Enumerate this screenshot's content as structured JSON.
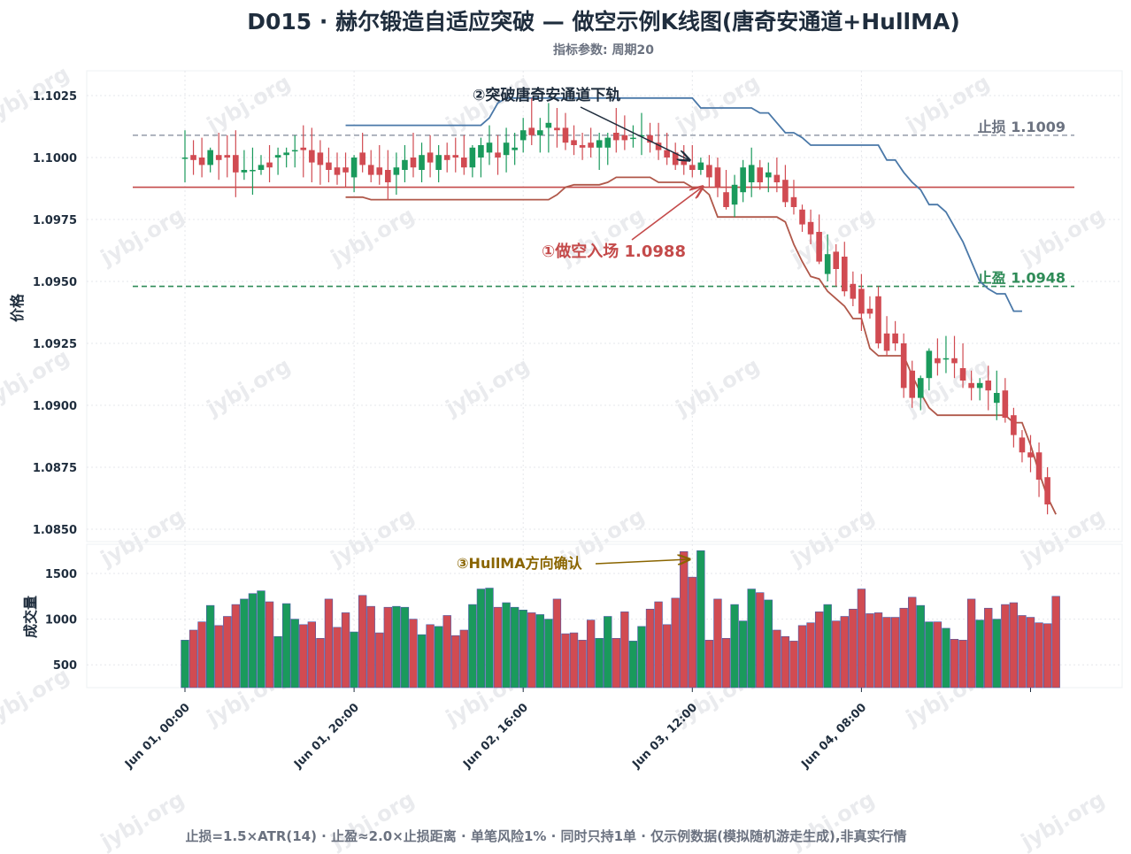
{
  "title": "D015 · 赫尔锻造自适应突破 — 做空示例K线图(唐奇安通道+HullMA)",
  "subtitle": "指标参数: 周期20",
  "footer": "止损=1.5×ATR(14) · 止盈≈2.0×止损距离 · 单笔风险1% · 同时只持1单 · 仅示例数据(模拟随机游走生成),非真实行情",
  "watermark": "jybj.org",
  "colors": {
    "up": "#1a9a5c",
    "down": "#d14b52",
    "donchian_upper": "#4a78a8",
    "donchian_lower": "#b0584a",
    "entry": "#c44a4a",
    "stop": "#9ca3af",
    "target": "#2e8b57",
    "hull_annotation": "#8a6500",
    "arrow_dark": "#1f2d3d"
  },
  "chart_data": {
    "type": "candlestick",
    "price_axis": {
      "label": "价格",
      "ylim": [
        1.0845,
        1.1035
      ],
      "ticks": [
        "1.1025",
        "1.1000",
        "1.0975",
        "1.0950",
        "1.0925",
        "1.0900",
        "1.0875",
        "1.0850"
      ],
      "tick_values": [
        1.1025,
        1.1,
        1.0975,
        1.095,
        1.0925,
        1.09,
        1.0875,
        1.085
      ]
    },
    "volume_axis": {
      "label": "成交量",
      "ylim": [
        250,
        1820
      ],
      "ticks": [
        "1500",
        "1000",
        "500"
      ],
      "tick_values": [
        1500,
        1000,
        500
      ]
    },
    "x_ticks": [
      "Jun 01, 00:00",
      "Jun 01, 20:00",
      "Jun 02, 16:00",
      "Jun 03, 12:00",
      "Jun 04, 08:00"
    ],
    "x_tick_index": [
      0,
      20,
      40,
      60,
      80
    ],
    "grid": true,
    "candles": [
      {
        "o": 1.1,
        "h": 1.1011,
        "l": 1.099,
        "c": 1.1
      },
      {
        "o": 1.1001,
        "h": 1.1007,
        "l": 1.0993,
        "c": 1.0999
      },
      {
        "o": 1.1,
        "h": 1.1008,
        "l": 1.0992,
        "c": 1.0997
      },
      {
        "o": 1.0997,
        "h": 1.1004,
        "l": 1.0994,
        "c": 1.1003
      },
      {
        "o": 1.1001,
        "h": 1.101,
        "l": 1.0991,
        "c": 1.0999
      },
      {
        "o": 1.1001,
        "h": 1.1009,
        "l": 1.0992,
        "c": 1.1
      },
      {
        "o": 1.1001,
        "h": 1.1011,
        "l": 1.0984,
        "c": 1.0994
      },
      {
        "o": 1.0994,
        "h": 1.1003,
        "l": 1.0991,
        "c": 1.0995
      },
      {
        "o": 1.0995,
        "h": 1.1004,
        "l": 1.0985,
        "c": 1.0995
      },
      {
        "o": 1.0995,
        "h": 1.1001,
        "l": 1.0993,
        "c": 1.0997
      },
      {
        "o": 1.0998,
        "h": 1.1005,
        "l": 1.099,
        "c": 1.0996
      },
      {
        "o": 1.1,
        "h": 1.1004,
        "l": 1.0993,
        "c": 1.1001
      },
      {
        "o": 1.1001,
        "h": 1.1004,
        "l": 1.0996,
        "c": 1.1002
      },
      {
        "o": 1.1003,
        "h": 1.1009,
        "l": 1.0996,
        "c": 1.1003
      },
      {
        "o": 1.1004,
        "h": 1.1013,
        "l": 1.0992,
        "c": 1.1003
      },
      {
        "o": 1.1003,
        "h": 1.1012,
        "l": 1.099,
        "c": 1.0998
      },
      {
        "o": 1.1002,
        "h": 1.1007,
        "l": 1.0989,
        "c": 1.0997
      },
      {
        "o": 1.0998,
        "h": 1.1004,
        "l": 1.099,
        "c": 1.0995
      },
      {
        "o": 1.0996,
        "h": 1.1002,
        "l": 1.0989,
        "c": 1.0993
      },
      {
        "o": 1.0996,
        "h": 1.1002,
        "l": 1.0988,
        "c": 1.0994
      },
      {
        "o": 1.0992,
        "h": 1.1001,
        "l": 1.0986,
        "c": 1.1
      },
      {
        "o": 1.1002,
        "h": 1.101,
        "l": 1.0994,
        "c": 1.0997
      },
      {
        "o": 1.0997,
        "h": 1.1003,
        "l": 1.099,
        "c": 1.0993
      },
      {
        "o": 1.0996,
        "h": 1.1005,
        "l": 1.0989,
        "c": 1.0993
      },
      {
        "o": 1.0995,
        "h": 1.1003,
        "l": 1.0983,
        "c": 1.099
      },
      {
        "o": 1.0993,
        "h": 1.1002,
        "l": 1.0985,
        "c": 1.0996
      },
      {
        "o": 1.0995,
        "h": 1.1005,
        "l": 1.099,
        "c": 1.0999
      },
      {
        "o": 1.1,
        "h": 1.101,
        "l": 1.0992,
        "c": 1.0996
      },
      {
        "o": 1.0995,
        "h": 1.1006,
        "l": 1.099,
        "c": 1.1001
      },
      {
        "o": 1.1002,
        "h": 1.1009,
        "l": 1.0992,
        "c": 1.0998
      },
      {
        "o": 1.0995,
        "h": 1.1005,
        "l": 1.099,
        "c": 1.1001
      },
      {
        "o": 1.1001,
        "h": 1.1006,
        "l": 1.0994,
        "c": 1.0999
      },
      {
        "o": 1.1001,
        "h": 1.1008,
        "l": 1.0994,
        "c": 1.1
      },
      {
        "o": 1.1,
        "h": 1.1009,
        "l": 1.0993,
        "c": 1.0996
      },
      {
        "o": 1.0996,
        "h": 1.1005,
        "l": 1.0992,
        "c": 1.1004
      },
      {
        "o": 1.1,
        "h": 1.1008,
        "l": 1.0992,
        "c": 1.1005
      },
      {
        "o": 1.1002,
        "h": 1.1013,
        "l": 1.0997,
        "c": 1.1006
      },
      {
        "o": 1.1002,
        "h": 1.1009,
        "l": 1.0993,
        "c": 1.1
      },
      {
        "o": 1.1001,
        "h": 1.1012,
        "l": 1.0994,
        "c": 1.1006
      },
      {
        "o": 1.1003,
        "h": 1.101,
        "l": 1.0997,
        "c": 1.1004
      },
      {
        "o": 1.1007,
        "h": 1.1016,
        "l": 1.1002,
        "c": 1.1011
      },
      {
        "o": 1.1012,
        "h": 1.1024,
        "l": 1.1005,
        "c": 1.1009
      },
      {
        "o": 1.1009,
        "h": 1.1016,
        "l": 1.1002,
        "c": 1.1011
      },
      {
        "o": 1.1012,
        "h": 1.1022,
        "l": 1.1002,
        "c": 1.1014
      },
      {
        "o": 1.1012,
        "h": 1.102,
        "l": 1.1004,
        "c": 1.1011
      },
      {
        "o": 1.1012,
        "h": 1.1018,
        "l": 1.1003,
        "c": 1.1006
      },
      {
        "o": 1.1007,
        "h": 1.1013,
        "l": 1.1001,
        "c": 1.1005
      },
      {
        "o": 1.1005,
        "h": 1.101,
        "l": 1.0999,
        "c": 1.1004
      },
      {
        "o": 1.1006,
        "h": 1.1012,
        "l": 1.1,
        "c": 1.1004
      },
      {
        "o": 1.1004,
        "h": 1.101,
        "l": 1.0995,
        "c": 1.1007
      },
      {
        "o": 1.1004,
        "h": 1.101,
        "l": 1.0997,
        "c": 1.1008
      },
      {
        "o": 1.101,
        "h": 1.102,
        "l": 1.1002,
        "c": 1.1007
      },
      {
        "o": 1.1009,
        "h": 1.1017,
        "l": 1.1003,
        "c": 1.1007
      },
      {
        "o": 1.1008,
        "h": 1.1013,
        "l": 1.1004,
        "c": 1.1008
      },
      {
        "o": 1.1009,
        "h": 1.1018,
        "l": 1.1001,
        "c": 1.1009
      },
      {
        "o": 1.1009,
        "h": 1.1014,
        "l": 1.1002,
        "c": 1.1006
      },
      {
        "o": 1.1006,
        "h": 1.1014,
        "l": 1.0999,
        "c": 1.1003
      },
      {
        "o": 1.1003,
        "h": 1.101,
        "l": 1.0997,
        "c": 1.1
      },
      {
        "o": 1.1002,
        "h": 1.1006,
        "l": 1.0995,
        "c": 1.0997
      },
      {
        "o": 1.0999,
        "h": 1.1005,
        "l": 1.0993,
        "c": 1.0997
      },
      {
        "o": 1.0997,
        "h": 1.1005,
        "l": 1.0992,
        "c": 1.0995
      },
      {
        "o": 1.0995,
        "h": 1.1,
        "l": 1.0993,
        "c": 1.0998
      },
      {
        "o": 1.0997,
        "h": 1.1001,
        "l": 1.0988,
        "c": 1.0992
      },
      {
        "o": 1.0996,
        "h": 1.1,
        "l": 1.0984,
        "c": 1.0988
      },
      {
        "o": 1.0986,
        "h": 1.0995,
        "l": 1.0979,
        "c": 1.098
      },
      {
        "o": 1.0981,
        "h": 1.0993,
        "l": 1.0976,
        "c": 1.0989
      },
      {
        "o": 1.0986,
        "h": 1.0999,
        "l": 1.0982,
        "c": 1.0996
      },
      {
        "o": 1.099,
        "h": 1.1004,
        "l": 1.0984,
        "c": 1.0997
      },
      {
        "o": 1.0996,
        "h": 1.0999,
        "l": 1.0987,
        "c": 1.099
      },
      {
        "o": 1.0992,
        "h": 1.0998,
        "l": 1.0986,
        "c": 1.0994
      },
      {
        "o": 1.0993,
        "h": 1.1,
        "l": 1.0986,
        "c": 1.099
      },
      {
        "o": 1.0991,
        "h": 1.0997,
        "l": 1.098,
        "c": 1.0982
      },
      {
        "o": 1.0984,
        "h": 1.0991,
        "l": 1.0977,
        "c": 1.098
      },
      {
        "o": 1.0979,
        "h": 1.0981,
        "l": 1.097,
        "c": 1.0973
      },
      {
        "o": 1.0974,
        "h": 1.0979,
        "l": 1.0965,
        "c": 1.0969
      },
      {
        "o": 1.097,
        "h": 1.0977,
        "l": 1.0957,
        "c": 1.0958
      },
      {
        "o": 1.0953,
        "h": 1.0969,
        "l": 1.095,
        "c": 1.0961
      },
      {
        "o": 1.0962,
        "h": 1.0965,
        "l": 1.0948,
        "c": 1.0955
      },
      {
        "o": 1.096,
        "h": 1.0966,
        "l": 1.0944,
        "c": 1.0946
      },
      {
        "o": 1.0949,
        "h": 1.0954,
        "l": 1.094,
        "c": 1.0943
      },
      {
        "o": 1.0947,
        "h": 1.0953,
        "l": 1.093,
        "c": 1.0937
      },
      {
        "o": 1.0939,
        "h": 1.0944,
        "l": 1.0935,
        "c": 1.0937
      },
      {
        "o": 1.0944,
        "h": 1.0948,
        "l": 1.0923,
        "c": 1.0925
      },
      {
        "o": 1.0929,
        "h": 1.0936,
        "l": 1.092,
        "c": 1.0922
      },
      {
        "o": 1.0929,
        "h": 1.0934,
        "l": 1.0922,
        "c": 1.0925
      },
      {
        "o": 1.0925,
        "h": 1.0929,
        "l": 1.0903,
        "c": 1.0907
      },
      {
        "o": 1.0914,
        "h": 1.0918,
        "l": 1.0899,
        "c": 1.0903
      },
      {
        "o": 1.0903,
        "h": 1.0912,
        "l": 1.0898,
        "c": 1.0911
      },
      {
        "o": 1.0911,
        "h": 1.0923,
        "l": 1.0906,
        "c": 1.0922
      },
      {
        "o": 1.0919,
        "h": 1.0927,
        "l": 1.0912,
        "c": 1.0917
      },
      {
        "o": 1.0919,
        "h": 1.0928,
        "l": 1.0913,
        "c": 1.0919
      },
      {
        "o": 1.0919,
        "h": 1.0928,
        "l": 1.0911,
        "c": 1.0917
      },
      {
        "o": 1.0915,
        "h": 1.0925,
        "l": 1.0907,
        "c": 1.091
      },
      {
        "o": 1.0909,
        "h": 1.0914,
        "l": 1.0902,
        "c": 1.0907
      },
      {
        "o": 1.0907,
        "h": 1.0911,
        "l": 1.0902,
        "c": 1.0909
      },
      {
        "o": 1.091,
        "h": 1.0916,
        "l": 1.0898,
        "c": 1.0906
      },
      {
        "o": 1.0901,
        "h": 1.0914,
        "l": 1.0894,
        "c": 1.0905
      },
      {
        "o": 1.0906,
        "h": 1.0911,
        "l": 1.0893,
        "c": 1.0895
      },
      {
        "o": 1.0896,
        "h": 1.0899,
        "l": 1.0883,
        "c": 1.0888
      },
      {
        "o": 1.0887,
        "h": 1.089,
        "l": 1.0877,
        "c": 1.0881
      },
      {
        "o": 1.0881,
        "h": 1.0888,
        "l": 1.0873,
        "c": 1.0879
      },
      {
        "o": 1.0881,
        "h": 1.0885,
        "l": 1.0863,
        "c": 1.087
      },
      {
        "o": 1.0871,
        "h": 1.0875,
        "l": 1.0856,
        "c": 1.086
      }
    ],
    "volume": [
      770,
      880,
      970,
      1150,
      930,
      1030,
      1160,
      1220,
      1280,
      1310,
      1190,
      810,
      1170,
      1000,
      940,
      970,
      790,
      1220,
      910,
      1070,
      860,
      1260,
      1140,
      850,
      1130,
      1140,
      1130,
      1000,
      830,
      940,
      920,
      1040,
      820,
      880,
      1160,
      1330,
      1340,
      1130,
      1180,
      1130,
      1100,
      1070,
      1050,
      1000,
      1220,
      840,
      850,
      770,
      990,
      790,
      1030,
      790,
      1080,
      760,
      920,
      1110,
      1190,
      940,
      1230,
      1740,
      1460,
      1750,
      770,
      1220,
      790,
      1160,
      980,
      1330,
      1290,
      1210,
      880,
      810,
      760,
      930,
      960,
      1080,
      1160,
      980,
      1030,
      1110,
      1330,
      1060,
      1070,
      1020,
      1020,
      1120,
      1240,
      1150,
      970,
      970,
      900,
      780,
      770,
      1220,
      990,
      1120,
      1000,
      1160,
      1180,
      1040,
      1020,
      960,
      950,
      1250
    ],
    "donchian_upper_start_index": 19,
    "donchian_upper": [
      1.1013,
      1.1013,
      1.1013,
      1.1013,
      1.1013,
      1.1013,
      1.1013,
      1.1013,
      1.1013,
      1.1013,
      1.1013,
      1.1013,
      1.1013,
      1.1013,
      1.1013,
      1.1013,
      1.1013,
      1.1016,
      1.1022,
      1.1024,
      1.1024,
      1.1024,
      1.1024,
      1.1024,
      1.1024,
      1.1024,
      1.1024,
      1.1024,
      1.1024,
      1.1024,
      1.1024,
      1.1024,
      1.1024,
      1.1024,
      1.1024,
      1.1024,
      1.1024,
      1.1024,
      1.1024,
      1.1024,
      1.1024,
      1.1024,
      1.102,
      1.102,
      1.102,
      1.102,
      1.102,
      1.102,
      1.102,
      1.1018,
      1.1018,
      1.1014,
      1.101,
      1.101,
      1.1008,
      1.1005,
      1.1005,
      1.1005,
      1.1005,
      1.1005,
      1.1005,
      1.1005,
      1.1005,
      1.1005,
      1.0999,
      1.0999,
      1.0994,
      1.099,
      1.0987,
      1.0981,
      1.0981,
      1.0978,
      1.0972,
      1.0966,
      1.0958,
      1.095,
      1.0947,
      1.0945,
      1.0945,
      1.0938,
      1.0938
    ],
    "donchian_lower_start_index": 19,
    "donchian_lower": [
      1.0984,
      1.0984,
      1.0984,
      1.0983,
      1.0983,
      1.0983,
      1.0983,
      1.0983,
      1.0983,
      1.0983,
      1.0983,
      1.0983,
      1.0983,
      1.0983,
      1.0983,
      1.0983,
      1.0983,
      1.0983,
      1.0983,
      1.0983,
      1.0983,
      1.0983,
      1.0983,
      1.0983,
      1.0983,
      1.0985,
      1.0988,
      1.0989,
      1.0989,
      1.0989,
      1.0989,
      1.099,
      1.0992,
      1.0992,
      1.0992,
      1.0992,
      1.0992,
      1.099,
      1.099,
      1.099,
      1.099,
      1.0988,
      1.0988,
      1.0985,
      1.0976,
      1.0976,
      1.0976,
      1.0976,
      1.0976,
      1.0976,
      1.0976,
      1.0976,
      1.0974,
      1.0965,
      1.0958,
      1.0952,
      1.0951,
      1.0946,
      1.0943,
      1.094,
      1.0935,
      1.0935,
      1.0923,
      1.092,
      1.092,
      1.092,
      1.092,
      1.0912,
      1.0905,
      1.0899,
      1.0896,
      1.0896,
      1.0896,
      1.0896,
      1.0896,
      1.0896,
      1.0896,
      1.0896,
      1.0896,
      1.0893,
      1.0893,
      1.0884,
      1.0873,
      1.0863,
      1.0856
    ],
    "entry": {
      "label": "①做空入场 1.0988",
      "price": 1.0988
    },
    "stop_loss": {
      "label": "止损 1.1009",
      "price": 1.1009
    },
    "take_profit": {
      "label": "止盈 1.0948",
      "price": 1.0948
    },
    "annotations": [
      {
        "label": "②突破唐奇安通道下轨"
      },
      {
        "label": "③HullMA方向确认"
      }
    ]
  }
}
